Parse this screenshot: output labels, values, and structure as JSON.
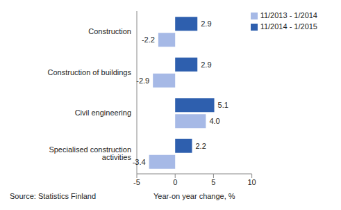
{
  "chart_data": {
    "type": "bar",
    "orientation": "horizontal",
    "categories": [
      "Construction",
      "Construction of buildings",
      "Civil engineering",
      "Specialised construction activities"
    ],
    "series": [
      {
        "name": "11/2014 - 1/2015",
        "color": "#2e5fae",
        "values": [
          2.9,
          2.9,
          5.1,
          2.2
        ],
        "value_labels": [
          "2.9",
          "2.9",
          "5.1",
          "2.2"
        ]
      },
      {
        "name": "11/2013 - 1/2014",
        "color": "#a6b9e6",
        "values": [
          -2.2,
          -2.9,
          4.0,
          -3.4
        ],
        "value_labels": [
          "-2.2",
          "-2.9",
          "4.0",
          "-3.4"
        ]
      }
    ],
    "xlim": [
      -5,
      10
    ],
    "xticks": [
      -5,
      0,
      5,
      10
    ],
    "x_label": "Year-on year change, %",
    "annotations": [
      "Source: Statistics Finland"
    ],
    "legend": "upper right",
    "data_labels": true,
    "grid": false
  }
}
